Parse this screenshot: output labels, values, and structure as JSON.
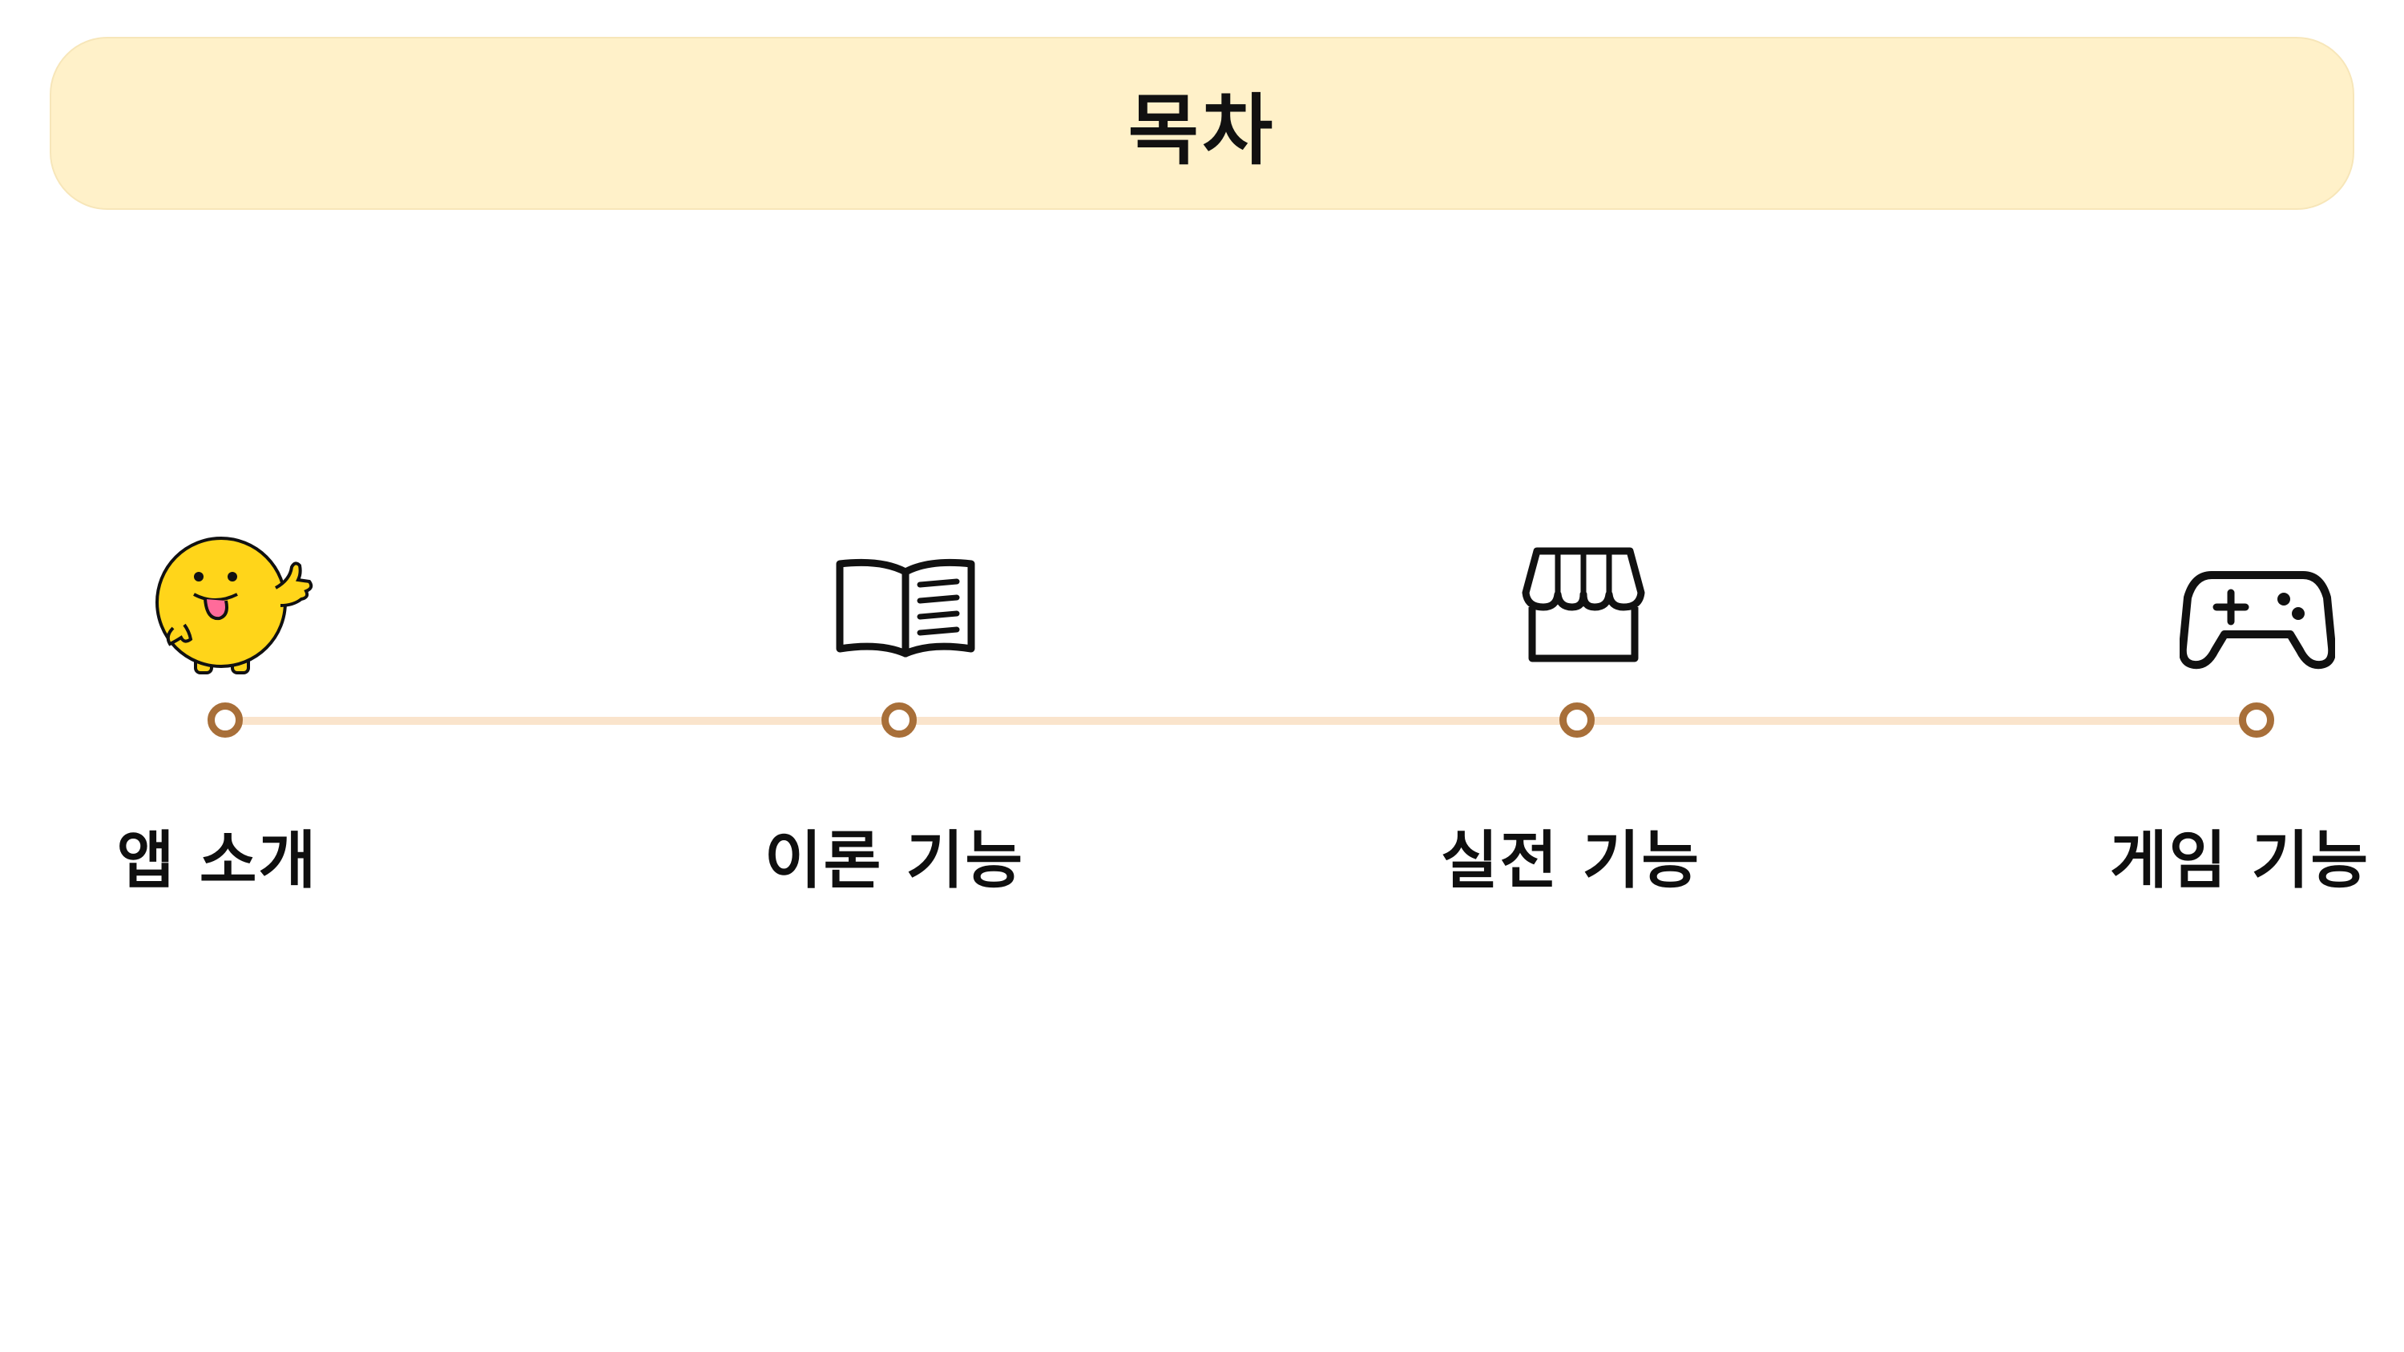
{
  "header": {
    "title": "목차"
  },
  "timeline": {
    "items": [
      {
        "label": "앱 소개",
        "icon": "smiley-mascot-icon"
      },
      {
        "label": "이론 기능",
        "icon": "open-book-icon"
      },
      {
        "label": "실전 기능",
        "icon": "storefront-icon"
      },
      {
        "label": "게임 기능",
        "icon": "gamepad-icon"
      }
    ]
  },
  "colors": {
    "header_bg": "#fff1c9",
    "line": "#fae4cc",
    "node_ring": "#a86f39",
    "mascot_yellow": "#ffd51a"
  }
}
